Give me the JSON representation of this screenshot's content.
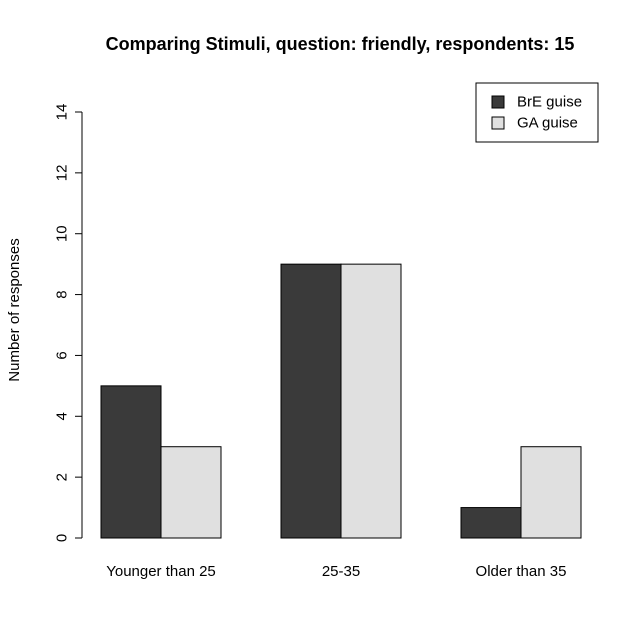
{
  "chart_data": {
    "type": "bar",
    "title": "Comparing Stimuli, question: friendly, respondents: 15",
    "xlabel": "",
    "ylabel": "Number of responses",
    "categories": [
      "Younger than 25",
      "25-35",
      "Older than 35"
    ],
    "series": [
      {
        "name": "BrE guise",
        "values": [
          5,
          9,
          1
        ],
        "color": "#3a3a3a"
      },
      {
        "name": "GA guise",
        "values": [
          3,
          9,
          3
        ],
        "color": "#e0e0e0"
      }
    ],
    "ylim": [
      0,
      14
    ],
    "yticks": [
      0,
      2,
      4,
      6,
      8,
      10,
      12,
      14
    ],
    "grid": false,
    "legend_position": "top-right"
  }
}
